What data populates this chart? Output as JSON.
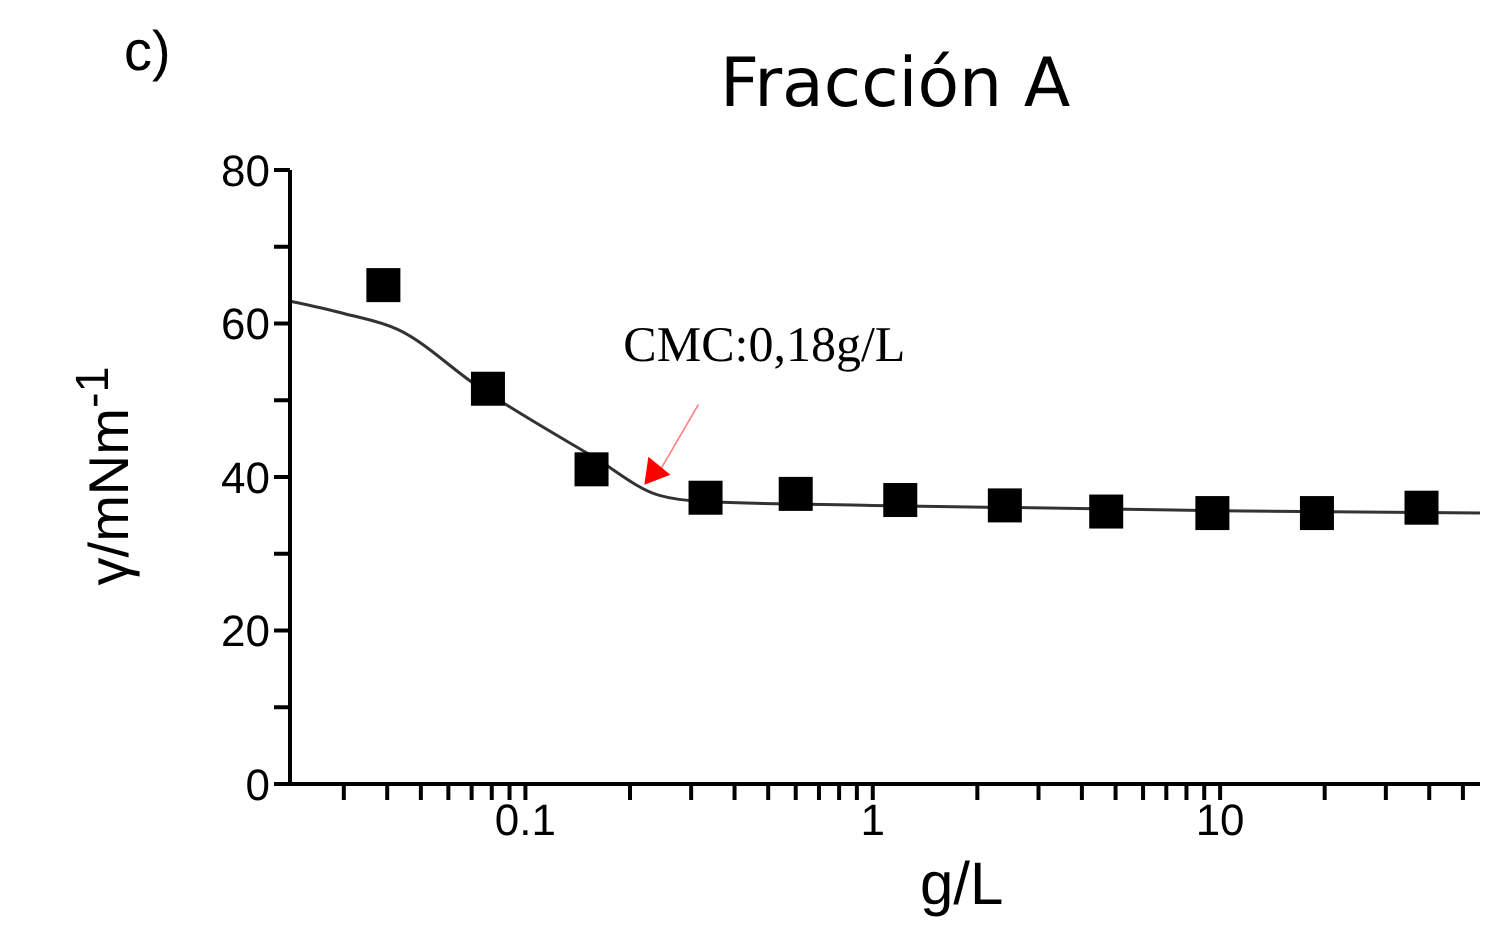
{
  "chart_data": {
    "type": "scatter",
    "title": "Fracción A",
    "xlabel": "g/L",
    "ylabel": "γ/mNm$^{-1}$",
    "annotations": [
      "c)",
      {
        "text": "CMC:0,18g/L",
        "x": 0.22,
        "y": 39
      }
    ],
    "log": "x",
    "xlim": [
      0.021,
      56
    ],
    "ylim": [
      0,
      80
    ],
    "xticks": [
      {
        "value": 0.03,
        "label": null
      },
      {
        "value": 0.04,
        "label": null
      },
      {
        "value": 0.05,
        "label": null
      },
      {
        "value": 0.06,
        "label": null
      },
      {
        "value": 0.07,
        "label": null
      },
      {
        "value": 0.08,
        "label": null
      },
      {
        "value": 0.09,
        "label": null
      },
      0.1,
      {
        "value": 0.2,
        "label": null
      },
      {
        "value": 0.3,
        "label": null
      },
      {
        "value": 0.4,
        "label": null
      },
      {
        "value": 0.5,
        "label": null
      },
      {
        "value": 0.6,
        "label": null
      },
      {
        "value": 0.7,
        "label": null
      },
      {
        "value": 0.8,
        "label": null
      },
      {
        "value": 0.9,
        "label": null
      },
      1,
      {
        "value": 2,
        "label": null
      },
      {
        "value": 3,
        "label": null
      },
      {
        "value": 4,
        "label": null
      },
      {
        "value": 5,
        "label": null
      },
      {
        "value": 6,
        "label": null
      },
      {
        "value": 7,
        "label": null
      },
      {
        "value": 8,
        "label": null
      },
      {
        "value": 9,
        "label": null
      },
      10,
      {
        "value": 20,
        "label": null
      },
      {
        "value": 30,
        "label": null
      },
      {
        "value": 40,
        "label": null
      },
      {
        "value": 50,
        "label": null
      }
    ],
    "yticks": [
      0,
      {
        "value": 10,
        "label": null
      },
      20,
      {
        "value": 30,
        "label": null
      },
      40,
      {
        "value": 50,
        "label": null
      },
      60,
      {
        "value": 70,
        "label": null
      },
      80
    ],
    "series": [
      {
        "marker": "square",
        "color": "#000000",
        "x": [
          0.039,
          0.078,
          0.155,
          0.33,
          0.6,
          1.2,
          2.4,
          4.7,
          9.5,
          19,
          38
        ],
        "values": [
          65,
          51.5,
          41,
          37.3,
          37.8,
          37,
          36.3,
          35.5,
          35.3,
          35.3,
          36
        ]
      },
      {
        "type": "line",
        "marker": "none",
        "color": "#333333",
        "x": [
          0.021,
          0.03,
          0.043,
          0.073,
          0.156,
          0.243,
          0.324,
          1,
          10,
          56
        ],
        "values": [
          62.9,
          61.3,
          59.2,
          51.8,
          42.7,
          37.6,
          36.8,
          36.3,
          35.6,
          35.3
        ]
      }
    ]
  }
}
